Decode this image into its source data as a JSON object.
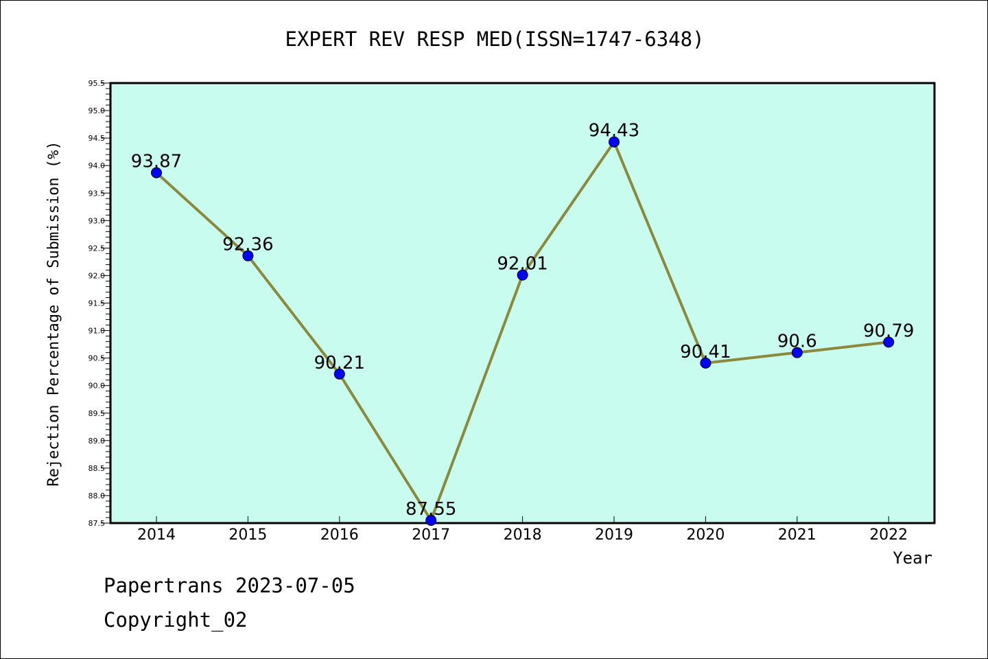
{
  "chart_data": {
    "type": "line",
    "title": "EXPERT REV RESP MED(ISSN=1747-6348)",
    "xlabel": "Year",
    "ylabel": "Rejection Percentage of Submission (%)",
    "categories": [
      "2014",
      "2015",
      "2016",
      "2017",
      "2018",
      "2019",
      "2020",
      "2021",
      "2022"
    ],
    "series": [
      {
        "values": [
          93.87,
          92.36,
          90.21,
          87.55,
          92.01,
          94.43,
          90.41,
          90.6,
          90.79
        ],
        "data_labels": [
          "93.87",
          "92.36",
          "90.21",
          "87.55",
          "92.01",
          "94.43",
          "90.41",
          "90.6",
          "90.79"
        ]
      }
    ],
    "ylim": [
      87.5,
      95.5
    ],
    "yticks": [
      "87.5",
      "88.0",
      "88.5",
      "89.0",
      "89.5",
      "90.0",
      "90.5",
      "91.0",
      "91.5",
      "92.0",
      "92.5",
      "93.0",
      "93.5",
      "94.0",
      "94.5",
      "95.0",
      "95.5"
    ],
    "grid": false,
    "colors": {
      "plot_background": "#c8fcee",
      "line": "#8b8a3a",
      "marker": "#0000ff"
    }
  },
  "footer": {
    "line1": "Papertrans 2023-07-05",
    "line2": "Copyright_02"
  }
}
